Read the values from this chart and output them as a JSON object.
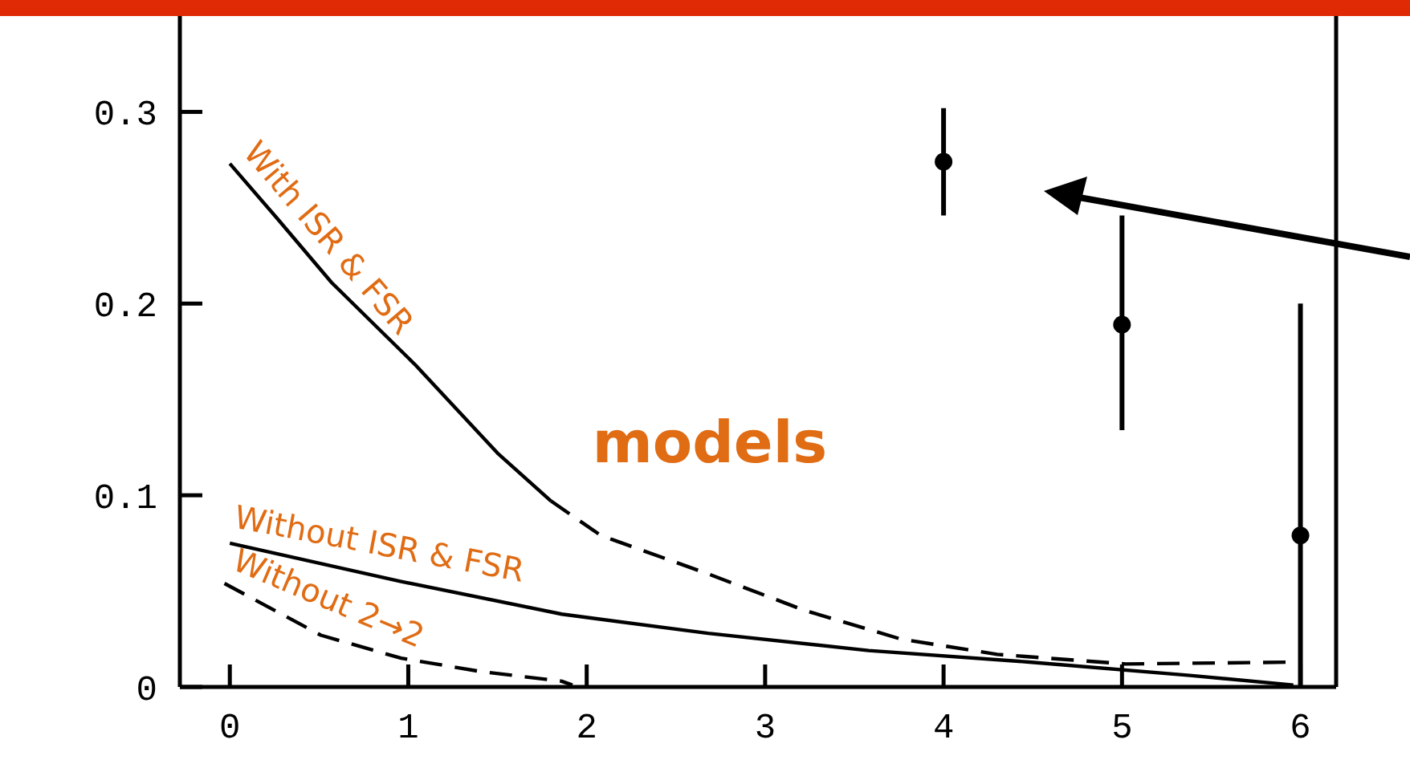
{
  "chart_data": {
    "type": "line",
    "marker": "none",
    "xlim": [
      -0.28,
      6.2
    ],
    "xticks": [
      0,
      1,
      2,
      3,
      4,
      5,
      6
    ],
    "ylim": [
      0,
      0.35
    ],
    "yticks": [
      0,
      0.1,
      0.2,
      0.3
    ],
    "annotations": [
      "models"
    ],
    "series": [
      {
        "name": "With ISR & FSR",
        "color": "#000000",
        "line_style": "solid",
        "x": [
          0,
          0.26,
          0.57,
          1.04,
          1.5,
          1.8
        ],
        "values": [
          0.273,
          0.245,
          0.211,
          0.168,
          0.122,
          0.097
        ]
      },
      {
        "color": "#000000",
        "line_style": "dashed",
        "x": [
          1.8,
          2.08,
          2.68,
          3.22,
          3.76,
          4.3,
          5.02,
          6
        ],
        "values": [
          0.097,
          0.079,
          0.059,
          0.04,
          0.025,
          0.017,
          0.012,
          0.013
        ]
      },
      {
        "name": "Without ISR & FSR",
        "color": "#000000",
        "line_style": "solid",
        "x": [
          0,
          0.96,
          1.86,
          2.68,
          3.58,
          4.48,
          5.38,
          5.96
        ],
        "values": [
          0.075,
          0.055,
          0.038,
          0.028,
          0.019,
          0.013,
          0.006,
          0.001
        ]
      },
      {
        "name": "Without 2→2",
        "color": "#000000",
        "line_style": "dashed",
        "x": [
          -0.03,
          0.29,
          0.51,
          0.96,
          1.41,
          1.86,
          1.92
        ],
        "values": [
          0.054,
          0.038,
          0.027,
          0.015,
          0.008,
          0.003,
          0.001
        ]
      },
      {
        "type": "scatter",
        "marker": "circle",
        "color": "#000000",
        "x": [
          4,
          5,
          6
        ],
        "values": [
          0.274,
          0.189,
          0.079
        ],
        "errors": [
          [
            0.246,
            0.302
          ],
          [
            0.134,
            0.246
          ],
          [
            0,
            0.2
          ]
        ]
      }
    ]
  }
}
